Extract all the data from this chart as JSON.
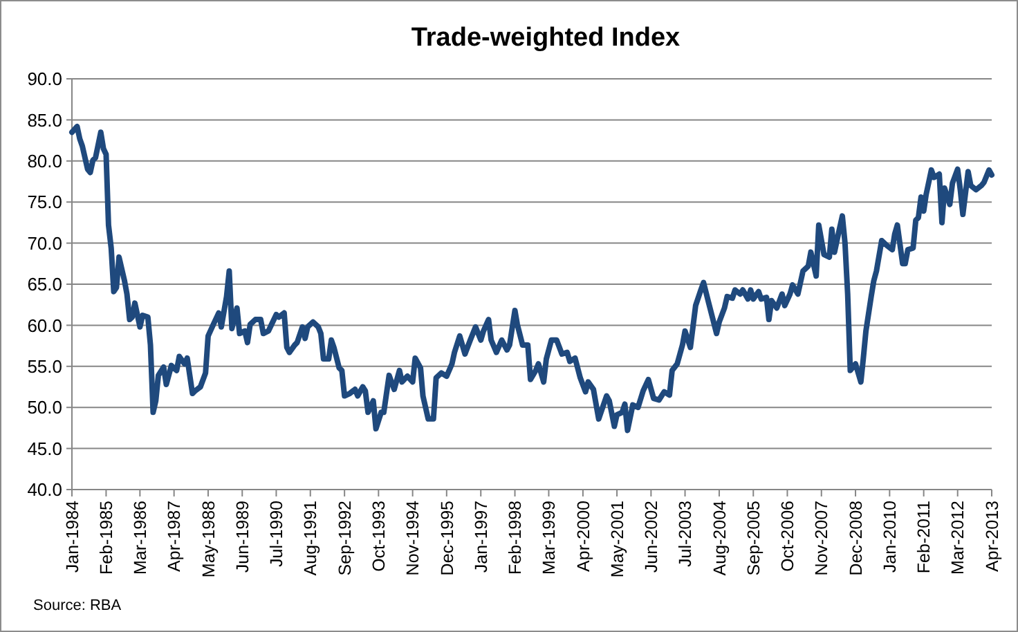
{
  "chart_data": {
    "type": "line",
    "title": "Trade-weighted Index",
    "annotations": [
      "Source: RBA"
    ],
    "x": [
      "1984-01",
      "1984-03",
      "1984-04",
      "1984-05",
      "1984-07",
      "1984-08",
      "1984-09",
      "1984-10",
      "1984-12",
      "1985-01",
      "1985-02",
      "1985-03",
      "1985-04",
      "1985-05",
      "1985-06",
      "1985-07",
      "1985-09",
      "1985-10",
      "1985-11",
      "1985-12",
      "1986-01",
      "1986-03",
      "1986-04",
      "1986-06",
      "1986-07",
      "1986-08",
      "1986-09",
      "1986-10",
      "1986-12",
      "1987-01",
      "1987-03",
      "1987-05",
      "1987-06",
      "1987-08",
      "1987-09",
      "1987-11",
      "1987-12",
      "1988-02",
      "1988-04",
      "1988-05",
      "1988-07",
      "1988-09",
      "1988-10",
      "1988-12",
      "1989-01",
      "1989-02",
      "1989-04",
      "1989-05",
      "1989-07",
      "1989-08",
      "1989-09",
      "1989-11",
      "1990-01",
      "1990-02",
      "1990-04",
      "1990-07",
      "1990-08",
      "1990-10",
      "1990-11",
      "1990-12",
      "1991-02",
      "1991-03",
      "1991-05",
      "1991-06",
      "1991-07",
      "1991-09",
      "1991-11",
      "1991-12",
      "1992-01",
      "1992-03",
      "1992-04",
      "1992-05",
      "1992-07",
      "1992-08",
      "1992-09",
      "1992-11",
      "1993-01",
      "1993-02",
      "1993-04",
      "1993-05",
      "1993-06",
      "1993-08",
      "1993-09",
      "1993-11",
      "1993-12",
      "1994-02",
      "1994-04",
      "1994-06",
      "1994-07",
      "1994-09",
      "1994-11",
      "1994-12",
      "1995-02",
      "1995-03",
      "1995-05",
      "1995-07",
      "1995-08",
      "1995-10",
      "1995-12",
      "1996-02",
      "1996-03",
      "1996-05",
      "1996-07",
      "1996-09",
      "1996-11",
      "1997-01",
      "1997-02",
      "1997-04",
      "1997-05",
      "1997-07",
      "1997-09",
      "1997-11",
      "1997-12",
      "1998-02",
      "1998-03",
      "1998-05",
      "1998-07",
      "1998-08",
      "1998-10",
      "1998-11",
      "1999-01",
      "1999-02",
      "1999-04",
      "1999-06",
      "1999-08",
      "1999-10",
      "1999-11",
      "2000-01",
      "2000-03",
      "2000-05",
      "2000-06",
      "2000-08",
      "2000-10",
      "2001-01",
      "2001-02",
      "2001-04",
      "2001-05",
      "2001-07",
      "2001-08",
      "2001-09",
      "2001-11",
      "2002-01",
      "2002-03",
      "2002-05",
      "2002-07",
      "2002-09",
      "2002-11",
      "2003-01",
      "2003-02",
      "2003-04",
      "2003-06",
      "2003-07",
      "2003-09",
      "2003-11",
      "2004-01",
      "2004-02",
      "2004-04",
      "2004-07",
      "2004-08",
      "2004-10",
      "2004-11",
      "2005-01",
      "2005-02",
      "2005-04",
      "2005-05",
      "2005-07",
      "2005-08",
      "2005-09",
      "2005-11",
      "2005-12",
      "2006-02",
      "2006-03",
      "2006-04",
      "2006-06",
      "2006-08",
      "2006-09",
      "2006-11",
      "2006-12",
      "2007-02",
      "2007-04",
      "2007-06",
      "2007-07",
      "2007-09",
      "2007-10",
      "2007-12",
      "2008-02",
      "2008-03",
      "2008-04",
      "2008-06",
      "2008-07",
      "2008-08",
      "2008-09",
      "2008-10",
      "2008-12",
      "2009-02",
      "2009-03",
      "2009-04",
      "2009-06",
      "2009-07",
      "2009-08",
      "2009-10",
      "2009-12",
      "2010-02",
      "2010-03",
      "2010-04",
      "2010-06",
      "2010-07",
      "2010-08",
      "2010-10",
      "2010-11",
      "2010-12",
      "2011-01",
      "2011-02",
      "2011-03",
      "2011-05",
      "2011-06",
      "2011-08",
      "2011-09",
      "2011-10",
      "2011-12",
      "2012-01",
      "2012-03",
      "2012-04",
      "2012-05",
      "2012-07",
      "2012-08",
      "2012-10",
      "2012-12",
      "2013-01",
      "2013-03",
      "2013-04"
    ],
    "series": [
      {
        "color": "#1f497d",
        "values": [
          83.5,
          84.2,
          82.7,
          81.8,
          79.0,
          78.6,
          80.1,
          80.4,
          83.5,
          81.5,
          80.8,
          72.2,
          69.4,
          64.1,
          64.6,
          68.3,
          65.5,
          63.8,
          60.7,
          61.0,
          62.7,
          59.8,
          61.2,
          61.0,
          57.6,
          49.4,
          50.8,
          53.9,
          54.9,
          52.8,
          55.1,
          54.5,
          56.2,
          55.3,
          56.0,
          51.7,
          52.0,
          52.5,
          54.2,
          58.7,
          60.1,
          61.5,
          59.8,
          63.5,
          66.6,
          59.6,
          62.1,
          59.0,
          59.3,
          57.9,
          60.1,
          60.7,
          60.7,
          59.0,
          59.3,
          61.3,
          61.0,
          61.5,
          57.3,
          56.7,
          57.6,
          57.9,
          59.8,
          58.4,
          59.8,
          60.4,
          59.8,
          59.0,
          55.9,
          55.9,
          58.2,
          57.3,
          54.8,
          54.5,
          51.4,
          51.7,
          52.2,
          51.4,
          52.5,
          52.0,
          49.4,
          50.8,
          47.4,
          49.4,
          49.4,
          53.9,
          52.2,
          54.5,
          53.1,
          53.8,
          53.1,
          56.0,
          54.8,
          51.4,
          48.6,
          48.6,
          53.6,
          54.2,
          53.8,
          55.3,
          56.7,
          58.7,
          56.5,
          58.2,
          59.8,
          58.2,
          59.3,
          60.7,
          58.2,
          56.7,
          58.2,
          57.0,
          57.6,
          61.8,
          60.1,
          57.6,
          57.6,
          53.4,
          54.5,
          55.3,
          53.1,
          55.9,
          58.2,
          58.2,
          56.5,
          56.7,
          55.6,
          56.0,
          53.6,
          51.9,
          53.1,
          52.2,
          48.6,
          51.4,
          50.8,
          47.7,
          49.1,
          49.4,
          50.4,
          47.2,
          50.3,
          50.0,
          52.0,
          53.4,
          51.1,
          50.9,
          51.9,
          51.5,
          54.5,
          55.3,
          57.6,
          59.3,
          57.3,
          62.4,
          64.3,
          65.2,
          62.7,
          59.0,
          60.4,
          62.1,
          63.5,
          63.3,
          64.3,
          63.8,
          64.3,
          63.2,
          64.3,
          63.2,
          64.1,
          63.2,
          63.4,
          60.7,
          63.0,
          62.1,
          63.8,
          62.4,
          63.8,
          64.9,
          63.8,
          66.6,
          67.2,
          68.9,
          66.0,
          72.2,
          68.6,
          68.3,
          71.7,
          68.9,
          71.9,
          73.3,
          70.0,
          63.8,
          54.5,
          55.3,
          53.1,
          55.9,
          59.3,
          63.5,
          65.4,
          66.6,
          70.3,
          69.7,
          69.2,
          71.1,
          72.2,
          67.5,
          67.5,
          69.2,
          69.4,
          72.8,
          73.1,
          75.6,
          73.9,
          75.9,
          78.9,
          78.0,
          78.4,
          72.5,
          76.7,
          74.7,
          77.3,
          79.0,
          76.5,
          73.5,
          78.7,
          77.0,
          76.5,
          77.0,
          77.4,
          78.9,
          78.3
        ]
      }
    ],
    "xlim": [
      "1984-01",
      "2013-04"
    ],
    "xticks": [
      {
        "value": "1984-01",
        "label": "Jan-1984"
      },
      {
        "value": "1985-02",
        "label": "Feb-1985"
      },
      {
        "value": "1986-03",
        "label": "Mar-1986"
      },
      {
        "value": "1987-04",
        "label": "Apr-1987"
      },
      {
        "value": "1988-05",
        "label": "May-1988"
      },
      {
        "value": "1989-06",
        "label": "Jun-1989"
      },
      {
        "value": "1990-07",
        "label": "Jul-1990"
      },
      {
        "value": "1991-08",
        "label": "Aug-1991"
      },
      {
        "value": "1992-09",
        "label": "Sep-1992"
      },
      {
        "value": "1993-10",
        "label": "Oct-1993"
      },
      {
        "value": "1994-11",
        "label": "Nov-1994"
      },
      {
        "value": "1995-12",
        "label": "Dec-1995"
      },
      {
        "value": "1997-01",
        "label": "Jan-1997"
      },
      {
        "value": "1998-02",
        "label": "Feb-1998"
      },
      {
        "value": "1999-03",
        "label": "Mar-1999"
      },
      {
        "value": "2000-04",
        "label": "Apr-2000"
      },
      {
        "value": "2001-05",
        "label": "May-2001"
      },
      {
        "value": "2002-06",
        "label": "Jun-2002"
      },
      {
        "value": "2003-07",
        "label": "Jul-2003"
      },
      {
        "value": "2004-08",
        "label": "Aug-2004"
      },
      {
        "value": "2005-09",
        "label": "Sep-2005"
      },
      {
        "value": "2006-10",
        "label": "Oct-2006"
      },
      {
        "value": "2007-11",
        "label": "Nov-2007"
      },
      {
        "value": "2008-12",
        "label": "Dec-2008"
      },
      {
        "value": "2010-01",
        "label": "Jan-2010"
      },
      {
        "value": "2011-02",
        "label": "Feb-2011"
      },
      {
        "value": "2012-03",
        "label": "Mar-2012"
      },
      {
        "value": "2013-04",
        "label": "Apr-2013"
      }
    ],
    "ylim": [
      40,
      90
    ],
    "yticks": [
      {
        "value": 40,
        "label": "40.0"
      },
      {
        "value": 45,
        "label": "45.0"
      },
      {
        "value": 50,
        "label": "50.0"
      },
      {
        "value": 55,
        "label": "55.0"
      },
      {
        "value": 60,
        "label": "60.0"
      },
      {
        "value": 65,
        "label": "65.0"
      },
      {
        "value": 70,
        "label": "70.0"
      },
      {
        "value": 75,
        "label": "75.0"
      },
      {
        "value": 80,
        "label": "80.0"
      },
      {
        "value": 85,
        "label": "85.0"
      },
      {
        "value": 90,
        "label": "90.0"
      }
    ],
    "grid": "y",
    "marker": "none",
    "line_style": "solid"
  }
}
